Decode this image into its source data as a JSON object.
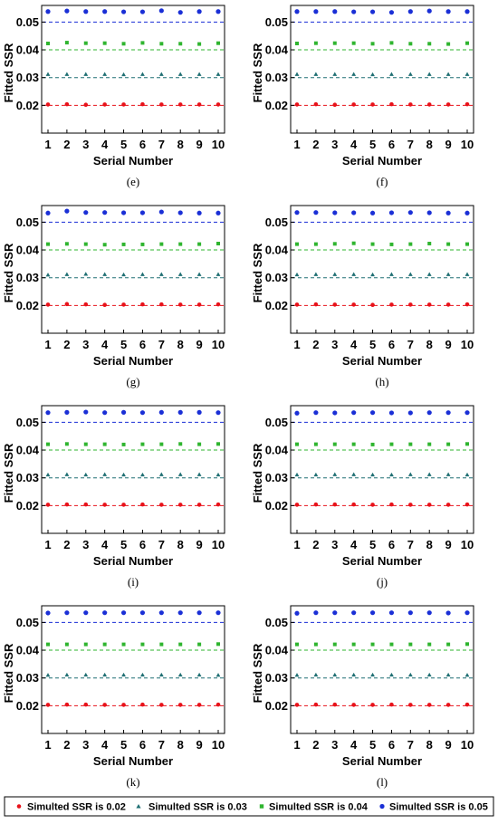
{
  "chart_data": [
    {
      "type": "scatter",
      "panel": "(e)",
      "xlabel": "Serial Number",
      "ylabel": "Fitted SSR",
      "x": [
        1,
        2,
        3,
        4,
        5,
        6,
        7,
        8,
        9,
        10
      ],
      "xlim": [
        1,
        10
      ],
      "ylim": [
        0.01,
        0.056
      ],
      "xticks": [
        "1",
        "2",
        "3",
        "4",
        "5",
        "6",
        "7",
        "8",
        "9",
        "10"
      ],
      "yticks": [
        "0.02",
        "0.03",
        "0.04",
        "0.05"
      ],
      "reference_lines": [
        0.02,
        0.03,
        0.04,
        0.05
      ],
      "series": [
        {
          "name": "Simulted SSR is 0.02",
          "values": [
            0.0203,
            0.0204,
            0.0202,
            0.0203,
            0.0203,
            0.0204,
            0.0203,
            0.0203,
            0.0203,
            0.0203
          ]
        },
        {
          "name": "Simulted SSR is 0.03",
          "values": [
            0.0312,
            0.0312,
            0.0312,
            0.0312,
            0.0311,
            0.0312,
            0.0312,
            0.0312,
            0.0312,
            0.0312
          ]
        },
        {
          "name": "Simulted SSR is 0.04",
          "values": [
            0.0423,
            0.0426,
            0.0424,
            0.0424,
            0.0422,
            0.0425,
            0.0422,
            0.0422,
            0.0421,
            0.0424
          ]
        },
        {
          "name": "Simulted SSR is 0.05",
          "values": [
            0.0538,
            0.054,
            0.0538,
            0.0538,
            0.0537,
            0.0537,
            0.0541,
            0.0535,
            0.0538,
            0.0538
          ]
        }
      ]
    },
    {
      "type": "scatter",
      "panel": "(f)",
      "xlabel": "Serial Number",
      "ylabel": "Fitted SSR",
      "x": [
        1,
        2,
        3,
        4,
        5,
        6,
        7,
        8,
        9,
        10
      ],
      "xlim": [
        1,
        10
      ],
      "ylim": [
        0.01,
        0.056
      ],
      "xticks": [
        "1",
        "2",
        "3",
        "4",
        "5",
        "6",
        "7",
        "8",
        "9",
        "10"
      ],
      "yticks": [
        "0.02",
        "0.03",
        "0.04",
        "0.05"
      ],
      "reference_lines": [
        0.02,
        0.03,
        0.04,
        0.05
      ],
      "series": [
        {
          "name": "Simulted SSR is 0.02",
          "values": [
            0.0203,
            0.0204,
            0.0202,
            0.0203,
            0.0203,
            0.0204,
            0.0203,
            0.0203,
            0.0203,
            0.0204
          ]
        },
        {
          "name": "Simulted SSR is 0.03",
          "values": [
            0.0312,
            0.0312,
            0.0312,
            0.0312,
            0.0311,
            0.0312,
            0.0312,
            0.0312,
            0.0312,
            0.0312
          ]
        },
        {
          "name": "Simulted SSR is 0.04",
          "values": [
            0.0423,
            0.0424,
            0.0424,
            0.0424,
            0.0422,
            0.0425,
            0.0422,
            0.0422,
            0.0421,
            0.0424
          ]
        },
        {
          "name": "Simulted SSR is 0.05",
          "values": [
            0.0538,
            0.0538,
            0.0538,
            0.0537,
            0.0537,
            0.0535,
            0.0538,
            0.054,
            0.0538,
            0.0538
          ]
        }
      ]
    },
    {
      "type": "scatter",
      "panel": "(g)",
      "xlabel": "Serial Number",
      "ylabel": "Fitted SSR",
      "x": [
        1,
        2,
        3,
        4,
        5,
        6,
        7,
        8,
        9,
        10
      ],
      "xlim": [
        1,
        10
      ],
      "ylim": [
        0.01,
        0.056
      ],
      "xticks": [
        "1",
        "2",
        "3",
        "4",
        "5",
        "6",
        "7",
        "8",
        "9",
        "10"
      ],
      "yticks": [
        "0.02",
        "0.03",
        "0.04",
        "0.05"
      ],
      "reference_lines": [
        0.02,
        0.03,
        0.04,
        0.05
      ],
      "series": [
        {
          "name": "Simulted SSR is 0.02",
          "values": [
            0.0203,
            0.0205,
            0.0204,
            0.0202,
            0.0203,
            0.0204,
            0.0204,
            0.0203,
            0.0203,
            0.0204
          ]
        },
        {
          "name": "Simulted SSR is 0.03",
          "values": [
            0.031,
            0.0312,
            0.0313,
            0.0312,
            0.0311,
            0.0312,
            0.0312,
            0.0312,
            0.0312,
            0.0312
          ]
        },
        {
          "name": "Simulted SSR is 0.04",
          "values": [
            0.0421,
            0.0422,
            0.0421,
            0.0419,
            0.042,
            0.042,
            0.0421,
            0.0421,
            0.0421,
            0.0423
          ]
        },
        {
          "name": "Simulted SSR is 0.05",
          "values": [
            0.0533,
            0.054,
            0.0535,
            0.0535,
            0.0534,
            0.0534,
            0.0537,
            0.0534,
            0.0533,
            0.0533
          ]
        }
      ]
    },
    {
      "type": "scatter",
      "panel": "(h)",
      "xlabel": "Serial Number",
      "ylabel": "Fitted SSR",
      "x": [
        1,
        2,
        3,
        4,
        5,
        6,
        7,
        8,
        9,
        10
      ],
      "xlim": [
        1,
        10
      ],
      "ylim": [
        0.01,
        0.056
      ],
      "xticks": [
        "1",
        "2",
        "3",
        "4",
        "5",
        "6",
        "7",
        "8",
        "9",
        "10"
      ],
      "yticks": [
        "0.02",
        "0.03",
        "0.04",
        "0.05"
      ],
      "reference_lines": [
        0.02,
        0.03,
        0.04,
        0.05
      ],
      "series": [
        {
          "name": "Simulted SSR is 0.02",
          "values": [
            0.0203,
            0.0204,
            0.0203,
            0.0203,
            0.0202,
            0.0203,
            0.0203,
            0.0203,
            0.0203,
            0.0204
          ]
        },
        {
          "name": "Simulted SSR is 0.03",
          "values": [
            0.0311,
            0.0312,
            0.0312,
            0.0312,
            0.0311,
            0.0312,
            0.0312,
            0.0312,
            0.0312,
            0.0312
          ]
        },
        {
          "name": "Simulted SSR is 0.04",
          "values": [
            0.0421,
            0.0421,
            0.0422,
            0.0424,
            0.0421,
            0.042,
            0.0421,
            0.0423,
            0.0421,
            0.0421
          ]
        },
        {
          "name": "Simulted SSR is 0.05",
          "values": [
            0.0535,
            0.0535,
            0.0534,
            0.0534,
            0.0533,
            0.0534,
            0.0535,
            0.0534,
            0.0533,
            0.0533
          ]
        }
      ]
    },
    {
      "type": "scatter",
      "panel": "(i)",
      "xlabel": "Serial Number",
      "ylabel": "Fitted SSR",
      "x": [
        1,
        2,
        3,
        4,
        5,
        6,
        7,
        8,
        9,
        10
      ],
      "xlim": [
        1,
        10
      ],
      "ylim": [
        0.01,
        0.056
      ],
      "xticks": [
        "1",
        "2",
        "3",
        "4",
        "5",
        "6",
        "7",
        "8",
        "9",
        "10"
      ],
      "yticks": [
        "0.02",
        "0.03",
        "0.04",
        "0.05"
      ],
      "reference_lines": [
        0.02,
        0.03,
        0.04,
        0.05
      ],
      "series": [
        {
          "name": "Simulted SSR is 0.02",
          "values": [
            0.0203,
            0.0204,
            0.0204,
            0.0203,
            0.0203,
            0.0204,
            0.0203,
            0.0203,
            0.0203,
            0.0204
          ]
        },
        {
          "name": "Simulted SSR is 0.03",
          "values": [
            0.0311,
            0.0312,
            0.0311,
            0.0312,
            0.0311,
            0.0311,
            0.0312,
            0.0312,
            0.0312,
            0.0311
          ]
        },
        {
          "name": "Simulted SSR is 0.04",
          "values": [
            0.0421,
            0.0422,
            0.0421,
            0.0421,
            0.042,
            0.0421,
            0.0421,
            0.0422,
            0.0421,
            0.0422
          ]
        },
        {
          "name": "Simulted SSR is 0.05",
          "values": [
            0.0535,
            0.0536,
            0.0537,
            0.0535,
            0.0536,
            0.0535,
            0.0536,
            0.0536,
            0.0536,
            0.0535
          ]
        }
      ]
    },
    {
      "type": "scatter",
      "panel": "(j)",
      "xlabel": "Serial Number",
      "ylabel": "Fitted SSR",
      "x": [
        1,
        2,
        3,
        4,
        5,
        6,
        7,
        8,
        9,
        10
      ],
      "xlim": [
        1,
        10
      ],
      "ylim": [
        0.01,
        0.056
      ],
      "xticks": [
        "1",
        "2",
        "3",
        "4",
        "5",
        "6",
        "7",
        "8",
        "9",
        "10"
      ],
      "yticks": [
        "0.02",
        "0.03",
        "0.04",
        "0.05"
      ],
      "reference_lines": [
        0.02,
        0.03,
        0.04,
        0.05
      ],
      "series": [
        {
          "name": "Simulted SSR is 0.02",
          "values": [
            0.0203,
            0.0204,
            0.0204,
            0.0204,
            0.0203,
            0.0204,
            0.0203,
            0.0203,
            0.0203,
            0.0204
          ]
        },
        {
          "name": "Simulted SSR is 0.03",
          "values": [
            0.0311,
            0.0311,
            0.0312,
            0.0312,
            0.0311,
            0.0311,
            0.0312,
            0.0312,
            0.0312,
            0.0311
          ]
        },
        {
          "name": "Simulted SSR is 0.04",
          "values": [
            0.0421,
            0.0421,
            0.0421,
            0.0421,
            0.042,
            0.0421,
            0.0421,
            0.0421,
            0.0421,
            0.0422
          ]
        },
        {
          "name": "Simulted SSR is 0.05",
          "values": [
            0.0533,
            0.0535,
            0.0534,
            0.0535,
            0.0535,
            0.0534,
            0.0534,
            0.0535,
            0.0535,
            0.0535
          ]
        }
      ]
    },
    {
      "type": "scatter",
      "panel": "(k)",
      "xlabel": "Serial Number",
      "ylabel": "Fitted SSR",
      "x": [
        1,
        2,
        3,
        4,
        5,
        6,
        7,
        8,
        9,
        10
      ],
      "xlim": [
        1,
        10
      ],
      "ylim": [
        0.01,
        0.056
      ],
      "xticks": [
        "1",
        "2",
        "3",
        "4",
        "5",
        "6",
        "7",
        "8",
        "9",
        "10"
      ],
      "yticks": [
        "0.02",
        "0.03",
        "0.04",
        "0.05"
      ],
      "reference_lines": [
        0.02,
        0.03,
        0.04,
        0.05
      ],
      "series": [
        {
          "name": "Simulted SSR is 0.02",
          "values": [
            0.0203,
            0.0204,
            0.0204,
            0.0203,
            0.0203,
            0.0204,
            0.0203,
            0.0203,
            0.0203,
            0.0204
          ]
        },
        {
          "name": "Simulted SSR is 0.03",
          "values": [
            0.031,
            0.0311,
            0.0311,
            0.0311,
            0.0311,
            0.0311,
            0.0311,
            0.0311,
            0.0311,
            0.031
          ]
        },
        {
          "name": "Simulted SSR is 0.04",
          "values": [
            0.0421,
            0.0421,
            0.0421,
            0.0421,
            0.0421,
            0.0421,
            0.0421,
            0.0421,
            0.0421,
            0.0422
          ]
        },
        {
          "name": "Simulted SSR is 0.05",
          "values": [
            0.0534,
            0.0535,
            0.0535,
            0.0535,
            0.0535,
            0.0535,
            0.0535,
            0.0535,
            0.0535,
            0.0535
          ]
        }
      ]
    },
    {
      "type": "scatter",
      "panel": "(l)",
      "xlabel": "Serial Number",
      "ylabel": "Fitted SSR",
      "x": [
        1,
        2,
        3,
        4,
        5,
        6,
        7,
        8,
        9,
        10
      ],
      "xlim": [
        1,
        10
      ],
      "ylim": [
        0.01,
        0.056
      ],
      "xticks": [
        "1",
        "2",
        "3",
        "4",
        "5",
        "6",
        "7",
        "8",
        "9",
        "10"
      ],
      "yticks": [
        "0.02",
        "0.03",
        "0.04",
        "0.05"
      ],
      "reference_lines": [
        0.02,
        0.03,
        0.04,
        0.05
      ],
      "series": [
        {
          "name": "Simulted SSR is 0.02",
          "values": [
            0.0203,
            0.0204,
            0.0204,
            0.0203,
            0.0203,
            0.0204,
            0.0203,
            0.0203,
            0.0203,
            0.0204
          ]
        },
        {
          "name": "Simulted SSR is 0.03",
          "values": [
            0.031,
            0.0311,
            0.0311,
            0.0311,
            0.0311,
            0.0311,
            0.0311,
            0.0311,
            0.0311,
            0.031
          ]
        },
        {
          "name": "Simulted SSR is 0.04",
          "values": [
            0.0421,
            0.0421,
            0.0421,
            0.0421,
            0.0421,
            0.0421,
            0.0421,
            0.0421,
            0.0421,
            0.0422
          ]
        },
        {
          "name": "Simulted SSR is 0.05",
          "values": [
            0.0533,
            0.0535,
            0.0535,
            0.0535,
            0.0535,
            0.0535,
            0.0535,
            0.0535,
            0.0534,
            0.0535
          ]
        }
      ]
    }
  ],
  "series_styles": [
    {
      "color": "#e8121a",
      "marker": "circle"
    },
    {
      "color": "#1f6f73",
      "marker": "triangle"
    },
    {
      "color": "#2fb52f",
      "marker": "square"
    },
    {
      "color": "#1a2fd6",
      "marker": "circle"
    }
  ],
  "legend": {
    "placement": "bottom",
    "entries": [
      "Simulted SSR is 0.02",
      "Simulted SSR is 0.03",
      "Simulted SSR is 0.04",
      "Simulted SSR is 0.05"
    ]
  },
  "grid": false
}
